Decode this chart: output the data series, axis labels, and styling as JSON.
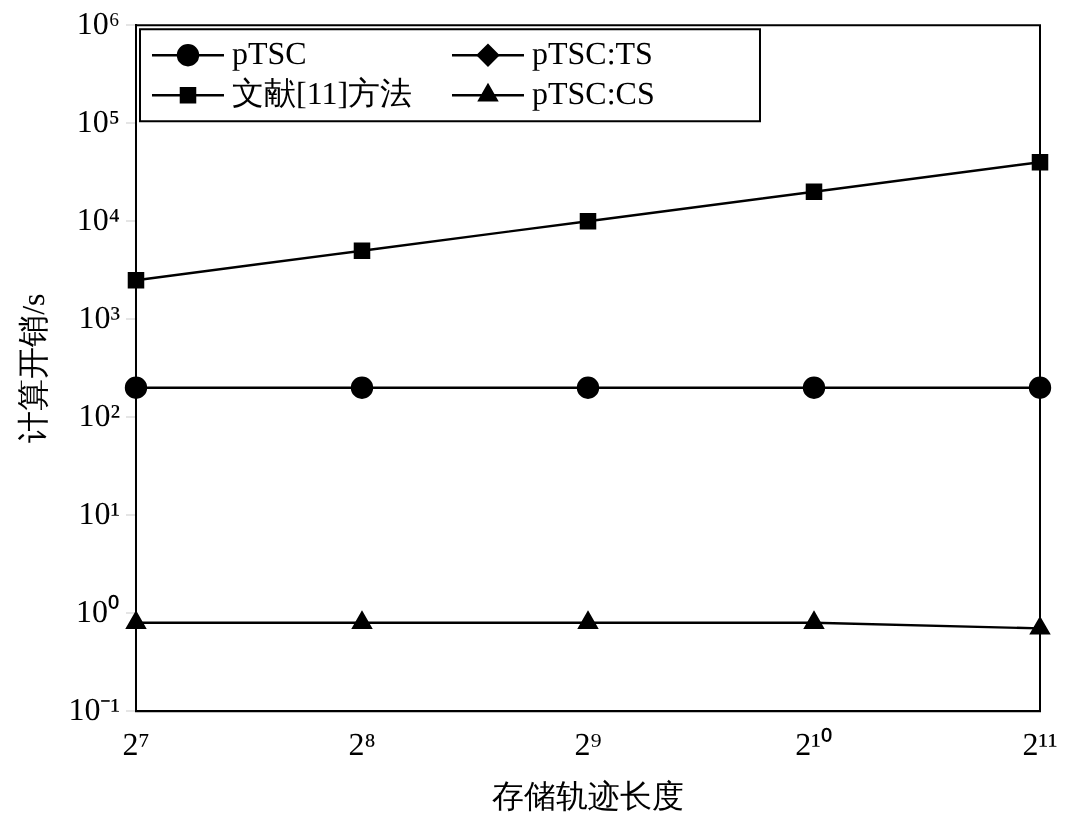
{
  "chart_data": {
    "type": "line",
    "xlabel": "存储轨迹长度",
    "ylabel": "计算开销/s",
    "categories": [
      "2⁷",
      "2⁸",
      "2⁹",
      "2¹⁰",
      "2¹¹"
    ],
    "series": [
      {
        "name": "pTSC",
        "color": "#000000",
        "marker": "circle",
        "values": [
          200,
          200,
          200,
          200,
          200
        ]
      },
      {
        "name": "文献[11]方法",
        "color": "#000000",
        "marker": "square",
        "values": [
          2500,
          5000,
          10000,
          20000,
          40000
        ]
      },
      {
        "name": "pTSC:TS",
        "color": "#000000",
        "marker": "diamond",
        "values": [
          null,
          null,
          null,
          null,
          null
        ]
      },
      {
        "name": "pTSC:CS",
        "color": "#000000",
        "marker": "triangle",
        "values": [
          0.8,
          0.8,
          0.8,
          0.8,
          0.7
        ]
      }
    ],
    "log": "y",
    "ylim": [
      0.1,
      1000000
    ],
    "yticks": [
      {
        "value": 0.1,
        "label": "10⁻¹"
      },
      {
        "value": 1,
        "label": "10⁰"
      },
      {
        "value": 10,
        "label": "10¹"
      },
      {
        "value": 100,
        "label": "10²"
      },
      {
        "value": 1000,
        "label": "10³"
      },
      {
        "value": 10000,
        "label": "10⁴"
      },
      {
        "value": 100000,
        "label": "10⁵"
      },
      {
        "value": 1000000,
        "label": "10⁶"
      }
    ],
    "grid": false,
    "legend": "top left",
    "line_style": "solid"
  }
}
